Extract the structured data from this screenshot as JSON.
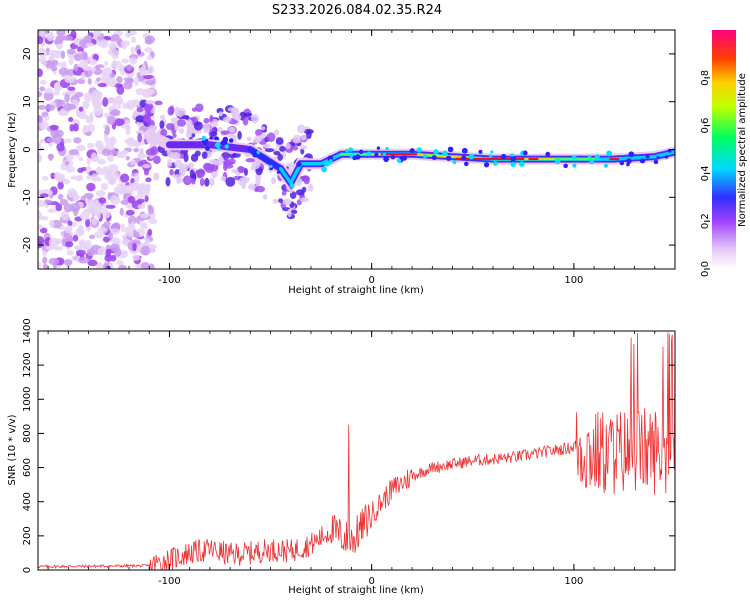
{
  "title": "S233.2026.084.02.35.R24",
  "chart_data": [
    {
      "type": "heatmap",
      "name": "spectrogram",
      "xlabel": "Height of straight line (km)",
      "ylabel": "Frequency (Hz)",
      "xlim": [
        -165,
        150
      ],
      "ylim": [
        -25,
        25
      ],
      "xticks": [
        -100,
        0,
        100
      ],
      "yticks": [
        -20,
        -10,
        0,
        10,
        20
      ],
      "ridge": {
        "description_points_x": [
          -110,
          -100,
          -80,
          -60,
          -45,
          -40,
          -35,
          -25,
          -15,
          0,
          10,
          20,
          40,
          60,
          80,
          100,
          120,
          140,
          150
        ],
        "description_points_y": [
          3,
          1,
          1,
          0,
          -4,
          -7,
          -3,
          -3,
          -1,
          -1,
          -1,
          -1,
          -1.5,
          -2,
          -2,
          -2,
          -2,
          -1.5,
          -0.5
        ]
      },
      "colorbar": {
        "label": "Normalized spectral amplitude",
        "range": [
          0.0,
          1.0
        ],
        "ticks": [
          "0.0",
          "0.2",
          "0.4",
          "0.6",
          "0.8"
        ]
      }
    },
    {
      "type": "line",
      "name": "snr",
      "xlabel": "Height of straight line (km)",
      "ylabel": "SNR (10 * v/v)",
      "xlim": [
        -165,
        150
      ],
      "ylim": [
        0,
        1400
      ],
      "xticks": [
        -100,
        0,
        100
      ],
      "yticks": [
        0,
        200,
        400,
        600,
        800,
        1000,
        1200,
        1400
      ],
      "color": "#ee3333",
      "trend_x": [
        -165,
        -110,
        -100,
        -90,
        -80,
        -70,
        -60,
        -50,
        -40,
        -30,
        -20,
        -15,
        -10,
        0,
        10,
        20,
        30,
        50,
        70,
        90,
        100,
        110,
        130,
        150
      ],
      "trend_y": [
        20,
        25,
        60,
        100,
        120,
        90,
        100,
        120,
        110,
        150,
        230,
        200,
        170,
        330,
        470,
        550,
        600,
        640,
        660,
        700,
        720,
        680,
        700,
        700
      ]
    }
  ]
}
